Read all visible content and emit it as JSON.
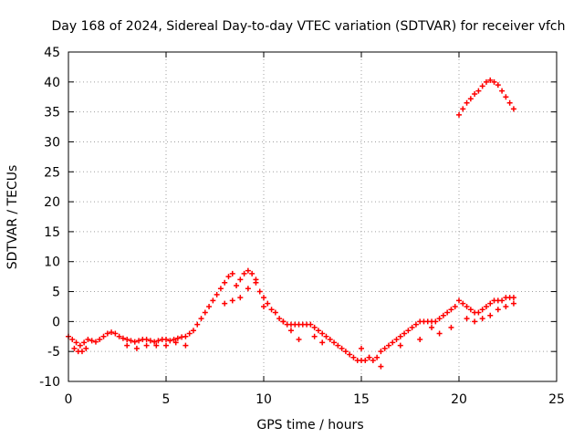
{
  "chart_data": {
    "type": "scatter",
    "title": "Day 168 of 2024, Sidereal Day-to-day VTEC variation (SDTVAR) for receiver vfch",
    "xlabel": "GPS time / hours",
    "ylabel": "SDTVAR / TECUs",
    "xlim": [
      0,
      25
    ],
    "ylim": [
      -10,
      45
    ],
    "xticks": [
      0,
      5,
      10,
      15,
      20,
      25
    ],
    "yticks": [
      -10,
      -5,
      0,
      5,
      10,
      15,
      20,
      25,
      30,
      35,
      40,
      45
    ],
    "grid": true,
    "marker": "+",
    "marker_color": "#ff0000",
    "series": [
      {
        "name": "SDTVAR",
        "x": [
          0.0,
          0.2,
          0.4,
          0.6,
          0.8,
          1.0,
          1.2,
          1.4,
          1.6,
          1.8,
          2.0,
          2.2,
          2.4,
          2.6,
          2.8,
          3.0,
          3.2,
          3.4,
          3.6,
          3.8,
          4.0,
          4.2,
          4.4,
          4.6,
          4.8,
          5.0,
          5.2,
          5.4,
          5.6,
          5.8,
          6.0,
          6.2,
          6.4,
          6.6,
          6.8,
          7.0,
          7.2,
          7.4,
          7.6,
          7.8,
          8.0,
          8.2,
          8.4,
          8.6,
          8.8,
          9.0,
          9.2,
          9.4,
          9.6,
          9.8,
          10.0,
          10.2,
          10.4,
          10.6,
          10.8,
          11.0,
          11.2,
          11.4,
          11.6,
          11.8,
          12.0,
          12.2,
          12.4,
          12.6,
          12.8,
          13.0,
          13.2,
          13.4,
          13.6,
          13.8,
          14.0,
          14.2,
          14.4,
          14.6,
          14.8,
          15.0,
          15.2,
          15.4,
          15.6,
          15.8,
          16.0,
          16.2,
          16.4,
          16.6,
          16.8,
          17.0,
          17.2,
          17.4,
          17.6,
          17.8,
          18.0,
          18.2,
          18.4,
          18.6,
          18.8,
          19.0,
          19.2,
          19.4,
          19.6,
          19.8,
          20.0,
          20.2,
          20.4,
          20.6,
          20.8,
          21.0,
          21.2,
          21.4,
          21.6,
          21.8,
          22.0,
          22.2,
          22.4,
          22.6,
          22.8,
          0.3,
          0.5,
          0.7,
          0.9,
          3.0,
          3.5,
          4.0,
          4.5,
          5.0,
          5.5,
          6.0,
          8.0,
          8.4,
          8.8,
          9.2,
          9.6,
          10.0,
          11.0,
          11.4,
          11.8,
          12.6,
          13.0,
          15.0,
          15.4,
          16.0,
          17.0,
          18.0,
          18.6,
          19.0,
          19.6,
          20.4,
          20.8,
          21.2,
          21.6,
          22.0,
          22.4,
          22.8,
          20.0,
          20.2,
          20.4,
          20.6,
          20.8,
          21.0,
          21.2,
          21.4,
          21.6,
          21.8,
          22.0,
          22.2,
          22.4,
          22.6,
          22.8
        ],
        "y": [
          -2.5,
          -3.0,
          -3.5,
          -4.0,
          -3.5,
          -3.0,
          -3.2,
          -3.4,
          -3.0,
          -2.5,
          -2.0,
          -1.8,
          -2.0,
          -2.5,
          -2.8,
          -3.0,
          -3.2,
          -3.4,
          -3.2,
          -3.0,
          -3.0,
          -3.2,
          -3.4,
          -3.2,
          -3.0,
          -3.0,
          -3.2,
          -3.0,
          -2.8,
          -2.6,
          -2.5,
          -2.0,
          -1.5,
          -0.5,
          0.5,
          1.5,
          2.5,
          3.5,
          4.5,
          5.5,
          6.5,
          7.5,
          8.0,
          6.0,
          7.0,
          8.0,
          8.5,
          8.0,
          7.0,
          5.0,
          4.0,
          3.0,
          2.0,
          1.5,
          0.5,
          0.0,
          -0.5,
          -0.5,
          -0.5,
          -0.5,
          -0.5,
          -0.5,
          -0.5,
          -1.0,
          -1.5,
          -2.0,
          -2.5,
          -3.0,
          -3.5,
          -4.0,
          -4.5,
          -5.0,
          -5.5,
          -6.0,
          -6.5,
          -6.5,
          -6.5,
          -6.0,
          -6.5,
          -6.0,
          -5.0,
          -4.5,
          -4.0,
          -3.5,
          -3.0,
          -2.5,
          -2.0,
          -1.5,
          -1.0,
          -0.5,
          0.0,
          0.0,
          0.0,
          0.0,
          0.0,
          0.5,
          1.0,
          1.5,
          2.0,
          2.5,
          3.5,
          3.0,
          2.5,
          2.0,
          1.5,
          1.5,
          2.0,
          2.5,
          3.0,
          3.5,
          3.5,
          3.5,
          4.0,
          4.0,
          4.0,
          -4.5,
          -5.0,
          -5.0,
          -4.5,
          -4.0,
          -4.5,
          -4.0,
          -4.0,
          -4.0,
          -3.5,
          -4.0,
          3.0,
          3.5,
          4.0,
          5.5,
          6.5,
          2.5,
          0.0,
          -1.5,
          -3.0,
          -2.5,
          -3.5,
          -4.5,
          -6.0,
          -7.5,
          -4.0,
          -3.0,
          -1.0,
          -2.0,
          -1.0,
          0.5,
          0.0,
          0.5,
          1.0,
          2.0,
          2.5,
          3.0,
          34.5,
          35.5,
          36.5,
          37.2,
          38.0,
          38.5,
          39.3,
          40.0,
          40.3,
          40.0,
          39.5,
          38.5,
          37.5,
          36.5,
          35.5
        ]
      }
    ]
  }
}
